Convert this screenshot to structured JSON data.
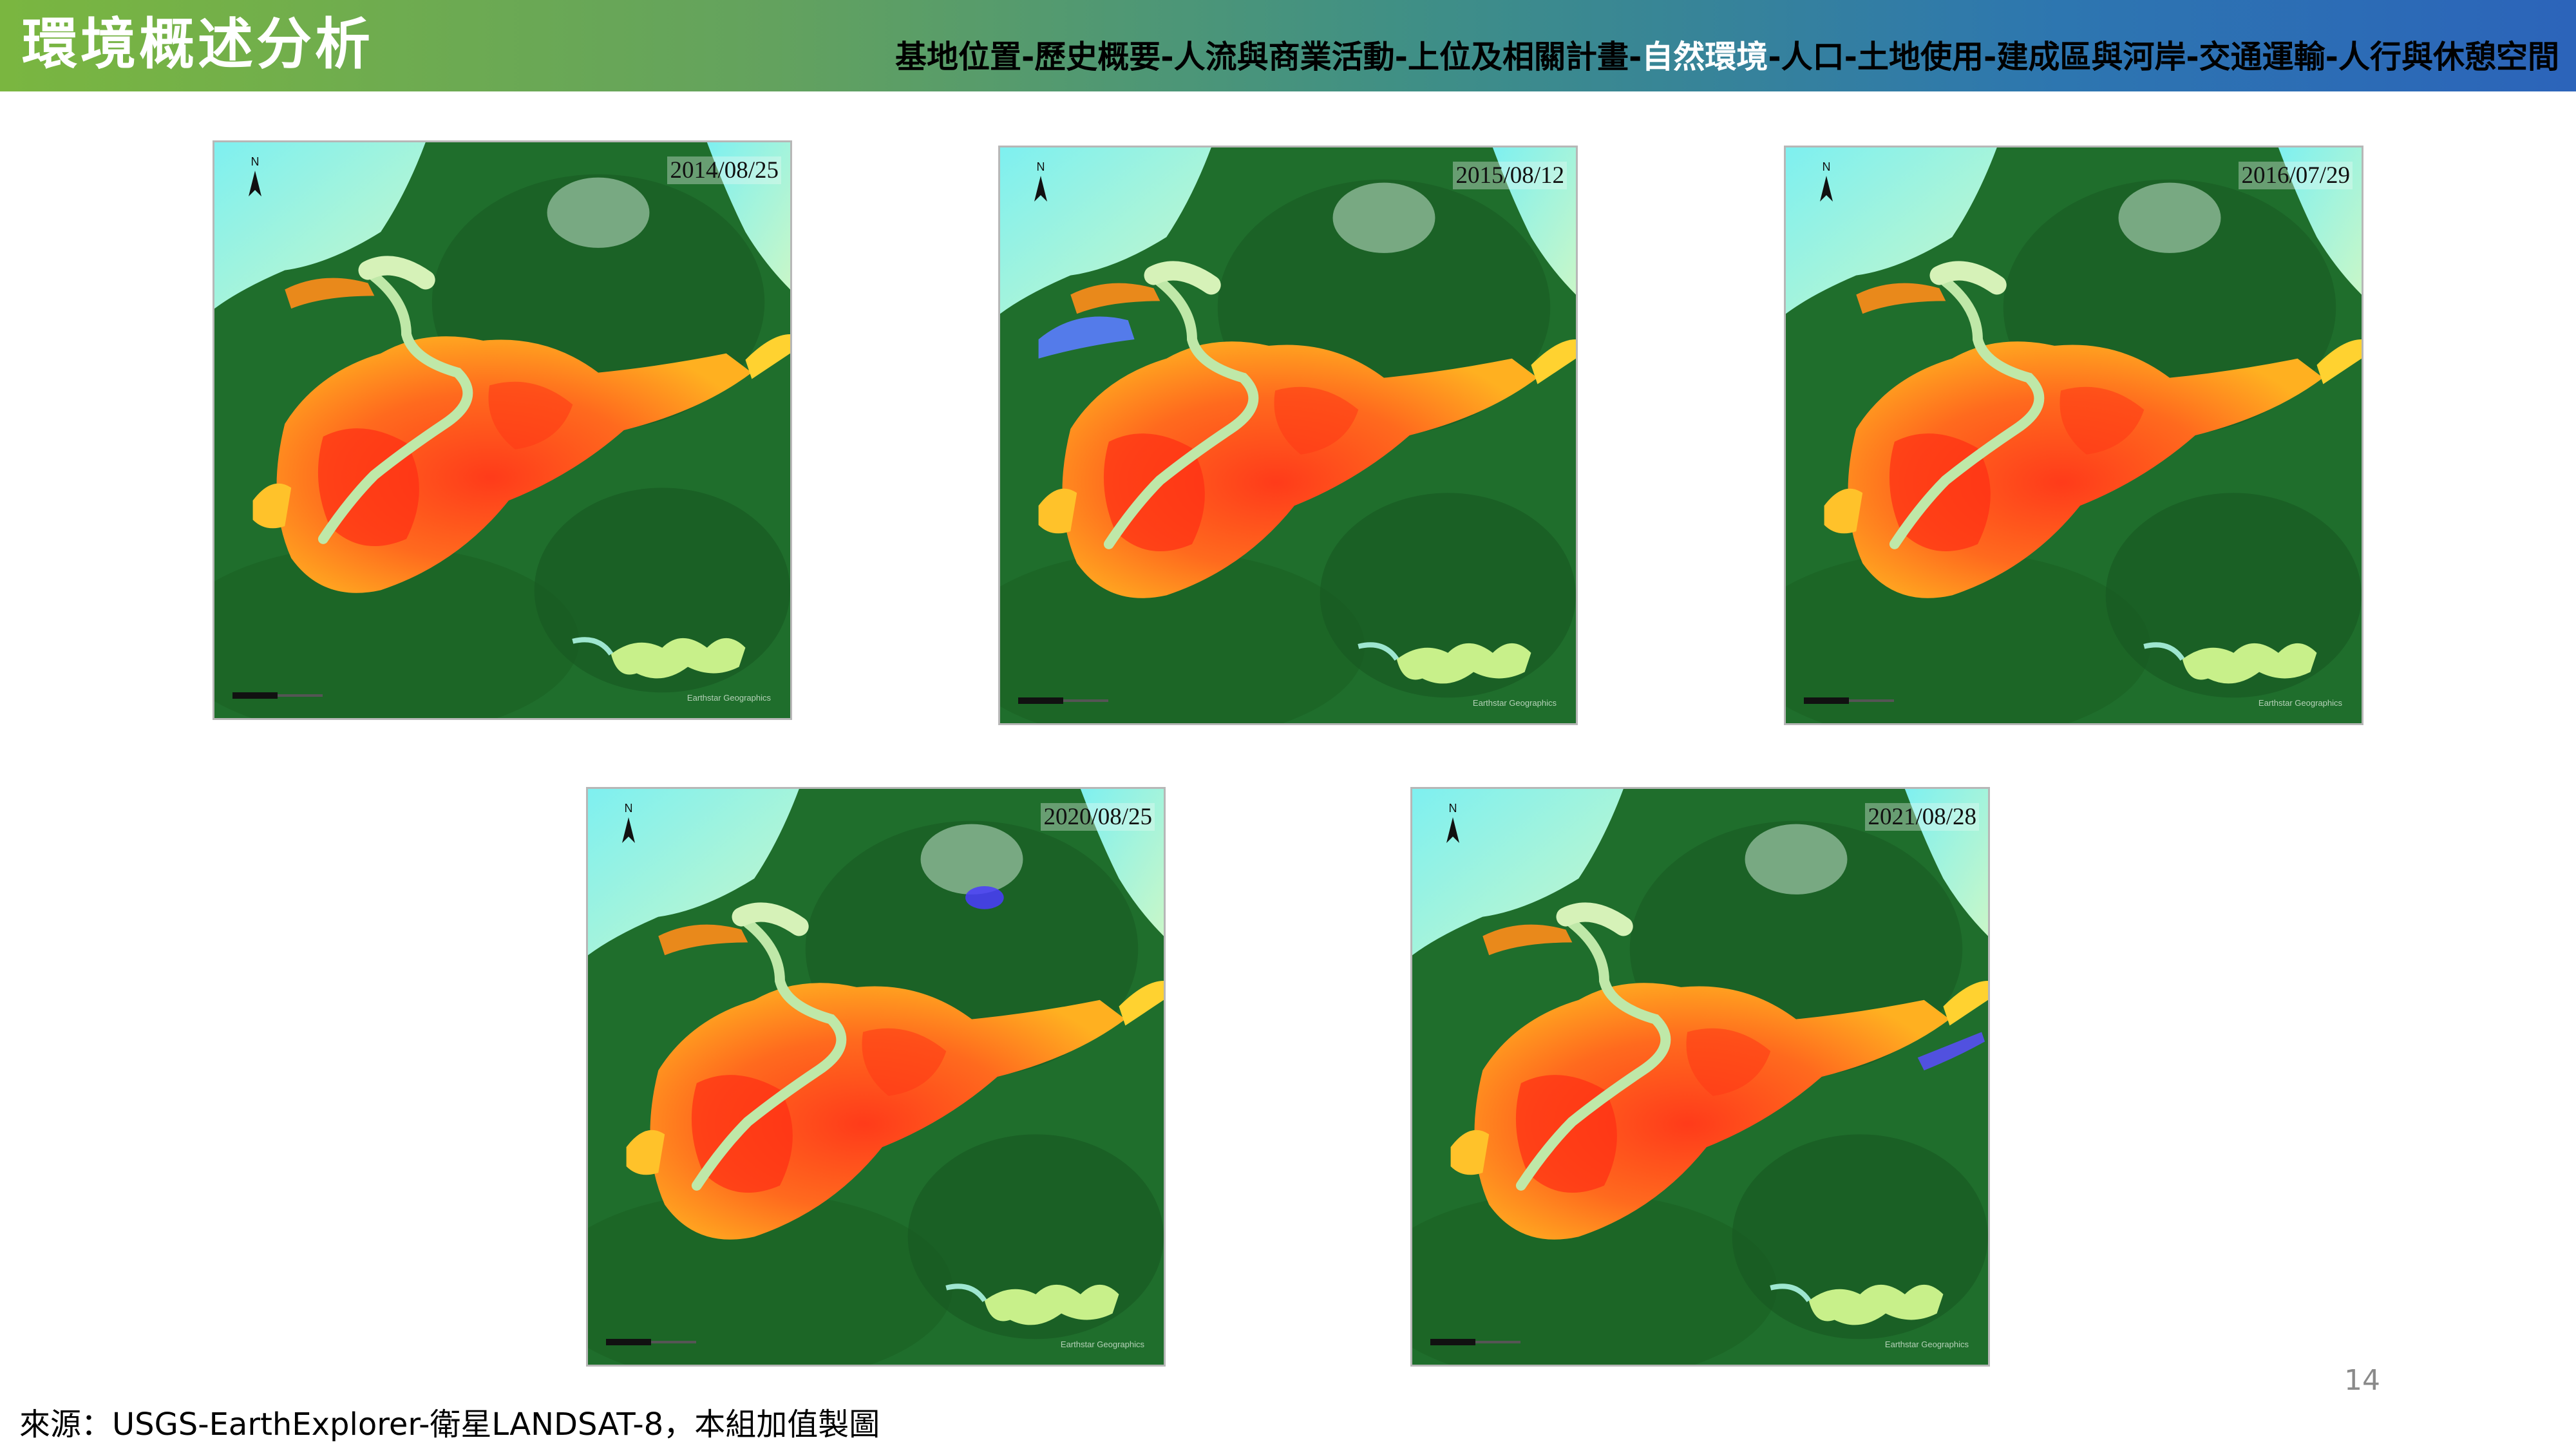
{
  "header": {
    "title": "環境概述分析",
    "breadcrumb": {
      "before": "基地位置-歷史概要-人流與商業活動-上位及相關計畫-",
      "active": "自然環境",
      "after": "-人口-土地使用-建成區與河岸-交通運輸-人行與休憩空間"
    }
  },
  "maps": [
    {
      "date": "2014/08/25"
    },
    {
      "date": "2015/08/12"
    },
    {
      "date": "2016/07/29"
    },
    {
      "date": "2020/08/25"
    },
    {
      "date": "2021/08/28"
    }
  ],
  "map_common": {
    "north_label": "N",
    "credit": "Earthstar Geographics"
  },
  "colors": {
    "sea": "#b9f5dc",
    "forest": "#1f6e2c",
    "urban_hot": "#ff5a1f",
    "urban_warm": "#ff9a1f",
    "river": "#bfe8a8"
  },
  "footer": {
    "page_number": "14",
    "source": "來源：USGS-EarthExplorer-衛星LANDSAT-8，本組加值製圖"
  }
}
